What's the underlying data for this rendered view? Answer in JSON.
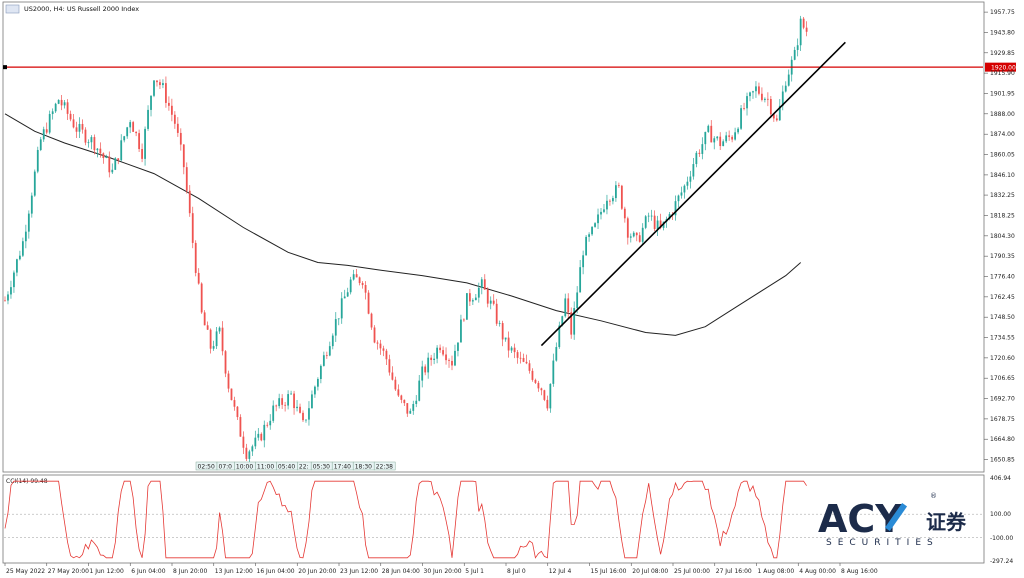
{
  "header": {
    "symbol_title": "US2000, H4:  US Russell 2000 Index"
  },
  "colors": {
    "bull": "#26a69a",
    "bear": "#ef5350",
    "level": "#d50000",
    "ma": "#222222",
    "trendline": "#000000",
    "cci": "#e53935",
    "logo": "#1c2b4a",
    "logo_accent": "#2a8bd6"
  },
  "chart_data": {
    "type": "candlestick",
    "symbol": "US2000",
    "timeframe": "H4",
    "ylim": [
      1643,
      1964
    ],
    "y_ticks": [
      "1957.75",
      "1943.80",
      "1929.85",
      "1915.90",
      "1901.95",
      "1888.00",
      "1874.00",
      "1860.05",
      "1846.10",
      "1832.25",
      "1818.25",
      "1804.30",
      "1790.35",
      "1776.40",
      "1762.45",
      "1748.50",
      "1734.55",
      "1720.60",
      "1706.65",
      "1692.70",
      "1678.75",
      "1664.80",
      "1650.85"
    ],
    "x_tick_labels": [
      "25 May 2022",
      "27 May 20:00",
      "1 Jun 12:00",
      "6 Jun 04:00",
      "8 Jun 20:00",
      "13 Jun 12:00",
      "16 Jun 04:00",
      "20 Jun 20:00",
      "23 Jun 12:00",
      "28 Jun 04:00",
      "30 Jun 20:00",
      "5 Jul 1",
      "8 Jul 0",
      "12 Jul 4",
      "15 Jul 16:00",
      "20 Jul 08:00",
      "25 Jul 00:00",
      "27 Jul 16:00",
      "1 Aug 08:00",
      "4 Aug 00:00",
      "8 Aug 16:00"
    ],
    "horizontal_level": {
      "value": 1920.0,
      "label": "1920.00"
    },
    "trendline": {
      "from": {
        "bar": 180,
        "price": 1729
      },
      "to": {
        "bar": 282,
        "price": 1937
      }
    },
    "ma_points": [
      [
        0,
        1888
      ],
      [
        10,
        1876
      ],
      [
        20,
        1868
      ],
      [
        35,
        1858
      ],
      [
        50,
        1847
      ],
      [
        65,
        1830
      ],
      [
        80,
        1810
      ],
      [
        95,
        1793
      ],
      [
        105,
        1786
      ],
      [
        115,
        1784
      ],
      [
        125,
        1781
      ],
      [
        140,
        1777
      ],
      [
        155,
        1772
      ],
      [
        170,
        1763
      ],
      [
        185,
        1753
      ],
      [
        200,
        1746
      ],
      [
        215,
        1738
      ],
      [
        225,
        1736
      ],
      [
        235,
        1742
      ],
      [
        245,
        1755
      ],
      [
        255,
        1768
      ],
      [
        262,
        1777
      ],
      [
        267,
        1786
      ]
    ],
    "price_path": [
      [
        0,
        1760
      ],
      [
        6,
        1800
      ],
      [
        12,
        1870
      ],
      [
        18,
        1898
      ],
      [
        24,
        1878
      ],
      [
        30,
        1868
      ],
      [
        36,
        1848
      ],
      [
        42,
        1885
      ],
      [
        46,
        1862
      ],
      [
        50,
        1915
      ],
      [
        53,
        1905
      ],
      [
        57,
        1882
      ],
      [
        60,
        1852
      ],
      [
        63,
        1800
      ],
      [
        66,
        1750
      ],
      [
        69,
        1728
      ],
      [
        72,
        1738
      ],
      [
        75,
        1702
      ],
      [
        78,
        1676
      ],
      [
        81,
        1656
      ],
      [
        85,
        1664
      ],
      [
        90,
        1685
      ],
      [
        96,
        1695
      ],
      [
        100,
        1674
      ],
      [
        105,
        1708
      ],
      [
        110,
        1740
      ],
      [
        116,
        1773
      ],
      [
        120,
        1775
      ],
      [
        124,
        1735
      ],
      [
        128,
        1720
      ],
      [
        132,
        1692
      ],
      [
        136,
        1682
      ],
      [
        140,
        1710
      ],
      [
        146,
        1730
      ],
      [
        150,
        1718
      ],
      [
        155,
        1760
      ],
      [
        160,
        1770
      ],
      [
        164,
        1753
      ],
      [
        168,
        1730
      ],
      [
        172,
        1720
      ],
      [
        176,
        1712
      ],
      [
        180,
        1700
      ],
      [
        182,
        1690
      ],
      [
        185,
        1728
      ],
      [
        188,
        1760
      ],
      [
        190,
        1738
      ],
      [
        194,
        1795
      ],
      [
        198,
        1810
      ],
      [
        202,
        1832
      ],
      [
        206,
        1836
      ],
      [
        209,
        1808
      ],
      [
        212,
        1800
      ],
      [
        216,
        1818
      ],
      [
        220,
        1808
      ],
      [
        224,
        1822
      ],
      [
        228,
        1838
      ],
      [
        232,
        1860
      ],
      [
        236,
        1875
      ],
      [
        240,
        1868
      ],
      [
        244,
        1873
      ],
      [
        248,
        1892
      ],
      [
        252,
        1905
      ],
      [
        256,
        1898
      ],
      [
        259,
        1882
      ],
      [
        262,
        1912
      ],
      [
        265,
        1928
      ],
      [
        267,
        1950
      ],
      [
        269,
        1945
      ]
    ],
    "cci": {
      "label": "CCI(14) 99.48",
      "period": 14,
      "value": 99.48,
      "levels": [
        100.0,
        -100.0
      ],
      "axis_labels": [
        "406.94",
        "100.00",
        "-100.00",
        "-297.24"
      ],
      "ylim": [
        -297.24,
        406.94
      ]
    },
    "time_box_labels": [
      "02:50",
      "07:0",
      "10:00",
      "11:00",
      "05:40",
      "22:",
      "05:30",
      "17:40",
      "18:30",
      "22:38"
    ]
  },
  "logo": {
    "main": "ACY",
    "chinese": "证券",
    "sub": "SECURITIES",
    "mark": "®"
  }
}
